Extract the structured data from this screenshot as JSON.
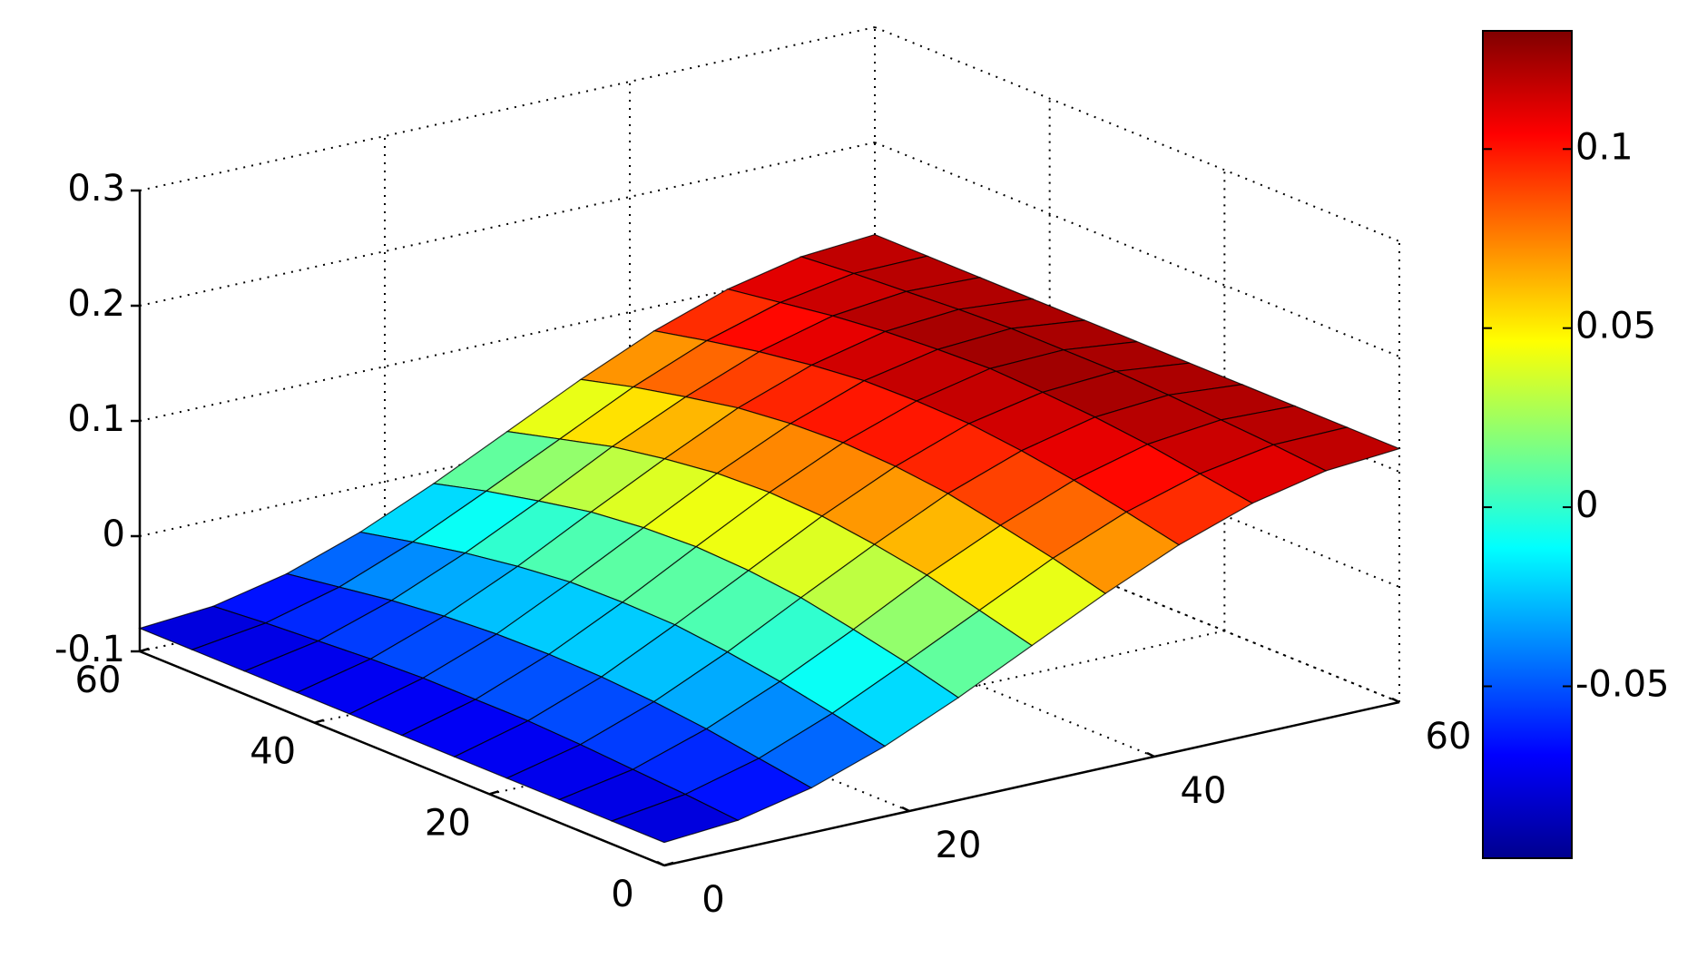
{
  "chart_data": {
    "type": "surface",
    "x": [
      0,
      6,
      12,
      18,
      24,
      30,
      36,
      42,
      48,
      54,
      60
    ],
    "y": [
      0,
      6,
      12,
      18,
      24,
      30,
      36,
      42,
      48,
      54,
      60
    ],
    "z": [
      [
        -0.08,
        -0.075,
        -0.061,
        -0.039,
        -0.011,
        0.02,
        0.051,
        0.079,
        0.101,
        0.115,
        0.12
      ],
      [
        -0.08,
        -0.071,
        -0.054,
        -0.029,
        0.001,
        0.032,
        0.063,
        0.089,
        0.108,
        0.119,
        0.12
      ],
      [
        -0.08,
        -0.068,
        -0.047,
        -0.02,
        0.011,
        0.044,
        0.073,
        0.098,
        0.115,
        0.122,
        0.12
      ],
      [
        -0.08,
        -0.065,
        -0.042,
        -0.013,
        0.02,
        0.052,
        0.082,
        0.105,
        0.12,
        0.125,
        0.12
      ],
      [
        -0.08,
        -0.063,
        -0.039,
        -0.008,
        0.025,
        0.058,
        0.087,
        0.11,
        0.123,
        0.127,
        0.12
      ],
      [
        -0.08,
        -0.063,
        -0.038,
        -0.007,
        0.027,
        0.06,
        0.089,
        0.111,
        0.125,
        0.127,
        0.12
      ],
      [
        -0.08,
        -0.063,
        -0.039,
        -0.008,
        0.025,
        0.058,
        0.087,
        0.11,
        0.123,
        0.127,
        0.12
      ],
      [
        -0.08,
        -0.065,
        -0.042,
        -0.013,
        0.02,
        0.052,
        0.082,
        0.105,
        0.12,
        0.125,
        0.12
      ],
      [
        -0.08,
        -0.068,
        -0.047,
        -0.02,
        0.011,
        0.044,
        0.073,
        0.098,
        0.115,
        0.122,
        0.12
      ],
      [
        -0.08,
        -0.071,
        -0.054,
        -0.029,
        0.001,
        0.032,
        0.063,
        0.089,
        0.108,
        0.119,
        0.12
      ],
      [
        -0.08,
        -0.075,
        -0.061,
        -0.039,
        -0.011,
        0.02,
        0.051,
        0.079,
        0.101,
        0.115,
        0.12
      ]
    ],
    "xlim": [
      0,
      60
    ],
    "ylim": [
      0,
      60
    ],
    "zlim": [
      -0.1,
      0.3
    ],
    "xticks": [
      0,
      20,
      40,
      60
    ],
    "yticks": [
      0,
      20,
      40,
      60
    ],
    "zticks": [
      -0.1,
      0,
      0.1,
      0.2,
      0.3
    ],
    "colormap": "jet",
    "clim": [
      -0.098,
      0.133
    ],
    "colorbar_ticks": [
      -0.05,
      0,
      0.05,
      0.1
    ],
    "grid": true,
    "mesh_color": "#000000"
  }
}
